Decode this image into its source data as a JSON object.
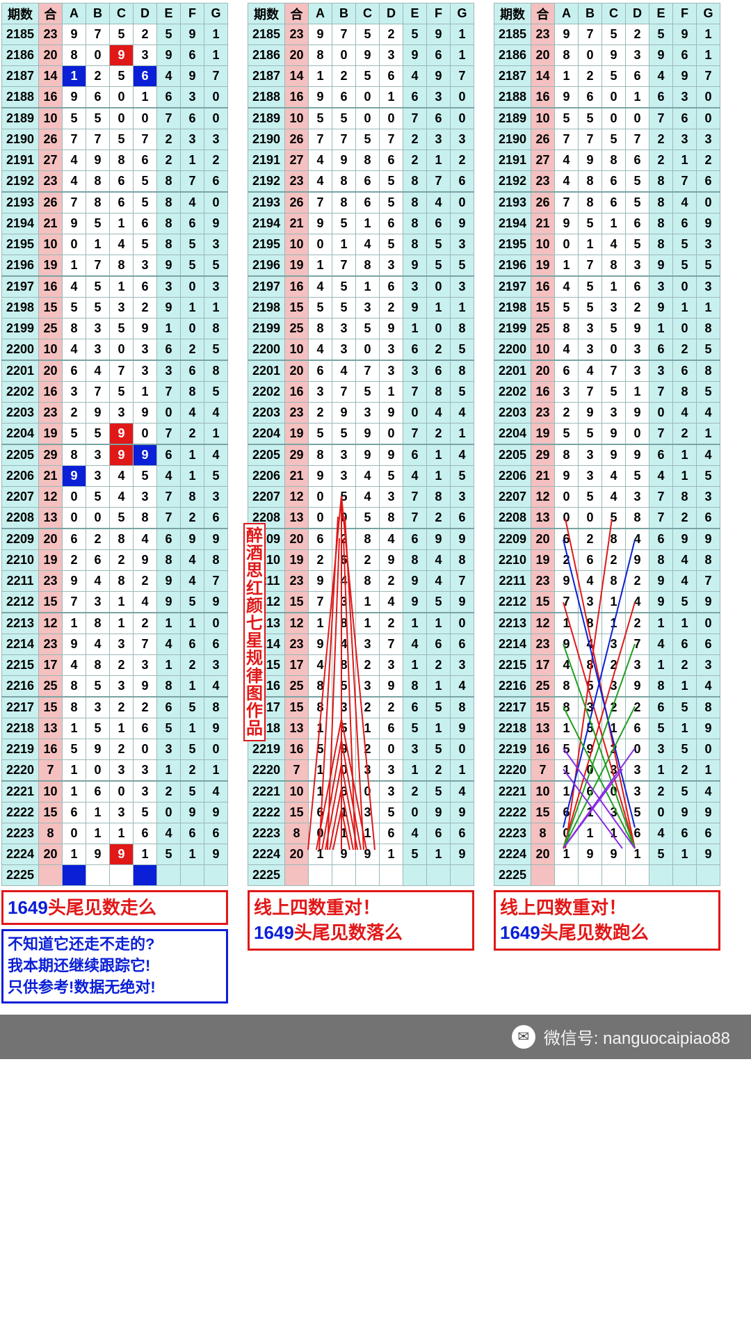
{
  "colors": {
    "red": "#e11818",
    "blue": "#0a1fd6",
    "cyan_bg": "#c8f0ef",
    "pink_bg": "#f5c0c0",
    "grid": "#9bb8b8"
  },
  "headers": {
    "qishu": "期数",
    "he": "合",
    "cols": [
      "A",
      "B",
      "C",
      "D",
      "E",
      "F",
      "G"
    ]
  },
  "group_separators_after": [
    2188,
    2192,
    2196,
    2200,
    2204,
    2208,
    2212,
    2216,
    2220
  ],
  "rows": [
    {
      "n": 2185,
      "he": 23,
      "v": [
        9,
        7,
        5,
        2,
        5,
        9,
        1
      ]
    },
    {
      "n": 2186,
      "he": 20,
      "v": [
        8,
        0,
        9,
        3,
        9,
        6,
        1
      ]
    },
    {
      "n": 2187,
      "he": 14,
      "v": [
        1,
        2,
        5,
        6,
        4,
        9,
        7
      ]
    },
    {
      "n": 2188,
      "he": 16,
      "v": [
        9,
        6,
        0,
        1,
        6,
        3,
        0
      ]
    },
    {
      "n": 2189,
      "he": 10,
      "v": [
        5,
        5,
        0,
        0,
        7,
        6,
        0
      ]
    },
    {
      "n": 2190,
      "he": 26,
      "v": [
        7,
        7,
        5,
        7,
        2,
        3,
        3
      ]
    },
    {
      "n": 2191,
      "he": 27,
      "v": [
        4,
        9,
        8,
        6,
        2,
        1,
        2
      ]
    },
    {
      "n": 2192,
      "he": 23,
      "v": [
        4,
        8,
        6,
        5,
        8,
        7,
        6
      ]
    },
    {
      "n": 2193,
      "he": 26,
      "v": [
        7,
        8,
        6,
        5,
        8,
        4,
        0
      ]
    },
    {
      "n": 2194,
      "he": 21,
      "v": [
        9,
        5,
        1,
        6,
        8,
        6,
        9
      ]
    },
    {
      "n": 2195,
      "he": 10,
      "v": [
        0,
        1,
        4,
        5,
        8,
        5,
        3
      ]
    },
    {
      "n": 2196,
      "he": 19,
      "v": [
        1,
        7,
        8,
        3,
        9,
        5,
        5
      ]
    },
    {
      "n": 2197,
      "he": 16,
      "v": [
        4,
        5,
        1,
        6,
        3,
        0,
        3
      ]
    },
    {
      "n": 2198,
      "he": 15,
      "v": [
        5,
        5,
        3,
        2,
        9,
        1,
        1
      ]
    },
    {
      "n": 2199,
      "he": 25,
      "v": [
        8,
        3,
        5,
        9,
        1,
        0,
        8
      ]
    },
    {
      "n": 2200,
      "he": 10,
      "v": [
        4,
        3,
        0,
        3,
        6,
        2,
        5
      ]
    },
    {
      "n": 2201,
      "he": 20,
      "v": [
        6,
        4,
        7,
        3,
        3,
        6,
        8
      ]
    },
    {
      "n": 2202,
      "he": 16,
      "v": [
        3,
        7,
        5,
        1,
        7,
        8,
        5
      ]
    },
    {
      "n": 2203,
      "he": 23,
      "v": [
        2,
        9,
        3,
        9,
        0,
        4,
        4
      ]
    },
    {
      "n": 2204,
      "he": 19,
      "v": [
        5,
        5,
        9,
        0,
        7,
        2,
        1
      ]
    },
    {
      "n": 2205,
      "he": 29,
      "v": [
        8,
        3,
        9,
        9,
        6,
        1,
        4
      ]
    },
    {
      "n": 2206,
      "he": 21,
      "v": [
        9,
        3,
        4,
        5,
        4,
        1,
        5
      ]
    },
    {
      "n": 2207,
      "he": 12,
      "v": [
        0,
        5,
        4,
        3,
        7,
        8,
        3
      ]
    },
    {
      "n": 2208,
      "he": 13,
      "v": [
        0,
        0,
        5,
        8,
        7,
        2,
        6
      ]
    },
    {
      "n": 2209,
      "he": 20,
      "v": [
        6,
        2,
        8,
        4,
        6,
        9,
        9
      ]
    },
    {
      "n": 2210,
      "he": 19,
      "v": [
        2,
        6,
        2,
        9,
        8,
        4,
        8
      ]
    },
    {
      "n": 2211,
      "he": 23,
      "v": [
        9,
        4,
        8,
        2,
        9,
        4,
        7
      ]
    },
    {
      "n": 2212,
      "he": 15,
      "v": [
        7,
        3,
        1,
        4,
        9,
        5,
        9
      ]
    },
    {
      "n": 2213,
      "he": 12,
      "v": [
        1,
        8,
        1,
        2,
        1,
        1,
        0
      ]
    },
    {
      "n": 2214,
      "he": 23,
      "v": [
        9,
        4,
        3,
        7,
        4,
        6,
        6
      ]
    },
    {
      "n": 2215,
      "he": 17,
      "v": [
        4,
        8,
        2,
        3,
        1,
        2,
        3
      ]
    },
    {
      "n": 2216,
      "he": 25,
      "v": [
        8,
        5,
        3,
        9,
        8,
        1,
        4
      ]
    },
    {
      "n": 2217,
      "he": 15,
      "v": [
        8,
        3,
        2,
        2,
        6,
        5,
        8
      ]
    },
    {
      "n": 2218,
      "he": 13,
      "v": [
        1,
        5,
        1,
        6,
        5,
        1,
        9
      ]
    },
    {
      "n": 2219,
      "he": 16,
      "v": [
        5,
        9,
        2,
        0,
        3,
        5,
        0
      ]
    },
    {
      "n": 2220,
      "he": 7,
      "v": [
        1,
        0,
        3,
        3,
        1,
        2,
        1
      ]
    },
    {
      "n": 2221,
      "he": 10,
      "v": [
        1,
        6,
        0,
        3,
        2,
        5,
        4
      ]
    },
    {
      "n": 2222,
      "he": 15,
      "v": [
        6,
        1,
        3,
        5,
        0,
        9,
        9
      ]
    },
    {
      "n": 2223,
      "he": 8,
      "v": [
        0,
        1,
        1,
        6,
        4,
        6,
        6
      ]
    },
    {
      "n": 2224,
      "he": 20,
      "v": [
        1,
        9,
        9,
        1,
        5,
        1,
        9
      ]
    },
    {
      "n": 2225,
      "he": "",
      "v": [
        "",
        "",
        "",
        "",
        "",
        "",
        ""
      ]
    }
  ],
  "table1_markers": {
    "red": [
      {
        "n": 2186,
        "col": 2
      },
      {
        "n": 2204,
        "col": 2
      },
      {
        "n": 2205,
        "col": 2
      },
      {
        "n": 2224,
        "col": 2
      }
    ],
    "blue": [
      {
        "n": 2187,
        "col": 0
      },
      {
        "n": 2187,
        "col": 3
      },
      {
        "n": 2205,
        "col": 3
      },
      {
        "n": 2206,
        "col": 0
      },
      {
        "n": 2225,
        "col": 0
      },
      {
        "n": 2225,
        "col": 3
      }
    ]
  },
  "table1_caption": {
    "text1": "1649",
    "text2": "头尾见数走么"
  },
  "table1_caption_blue": [
    "不知道它还走不走的?",
    "我本期还继续跟踪它!",
    "只供参考!数据无绝对!"
  ],
  "vstrip_text": "醉酒思红颜七星规律图作品",
  "table2_caption": [
    "线上四数重对！",
    "1649头尾见数落么"
  ],
  "table3_caption": [
    "线上四数重对！",
    "1649头尾见数跑么"
  ],
  "overlay2": {
    "stroke": "#e11818",
    "w": 2,
    "lines": [
      [
        135,
        709,
        135,
        1218
      ],
      [
        135,
        709,
        87,
        1218
      ],
      [
        135,
        709,
        183,
        1218
      ],
      [
        130,
        739,
        103,
        1218
      ],
      [
        140,
        739,
        167,
        1218
      ],
      [
        132,
        770,
        115,
        1218
      ],
      [
        138,
        770,
        155,
        1218
      ],
      [
        135,
        1030,
        99,
        1218
      ],
      [
        135,
        1030,
        171,
        1218
      ],
      [
        135,
        1060,
        107,
        1218
      ],
      [
        135,
        1060,
        163,
        1218
      ],
      [
        135,
        1095,
        112,
        1218
      ],
      [
        135,
        1095,
        158,
        1218
      ],
      [
        135,
        1130,
        118,
        1218
      ],
      [
        135,
        1130,
        152,
        1218
      ],
      [
        135,
        1160,
        123,
        1218
      ],
      [
        135,
        1160,
        147,
        1218
      ]
    ]
  },
  "overlay3": {
    "w": 2,
    "red": [
      [
        103,
        742,
        203,
        1216
      ],
      [
        170,
        742,
        103,
        1216
      ],
      [
        100,
        862,
        203,
        1216
      ],
      [
        203,
        862,
        100,
        1216
      ]
    ],
    "blue": [
      [
        100,
        772,
        203,
        1186
      ],
      [
        203,
        772,
        100,
        1186
      ]
    ],
    "green": [
      [
        100,
        922,
        203,
        1216
      ],
      [
        203,
        922,
        100,
        1216
      ],
      [
        100,
        1012,
        203,
        1216
      ],
      [
        203,
        1012,
        100,
        1216
      ]
    ],
    "purple": [
      [
        100,
        1072,
        203,
        1216
      ],
      [
        203,
        1072,
        100,
        1216
      ],
      [
        100,
        1102,
        185,
        1216
      ],
      [
        185,
        1102,
        100,
        1216
      ]
    ]
  },
  "footer": {
    "label": "微信号:",
    "id": "nanguocaipiao88"
  }
}
